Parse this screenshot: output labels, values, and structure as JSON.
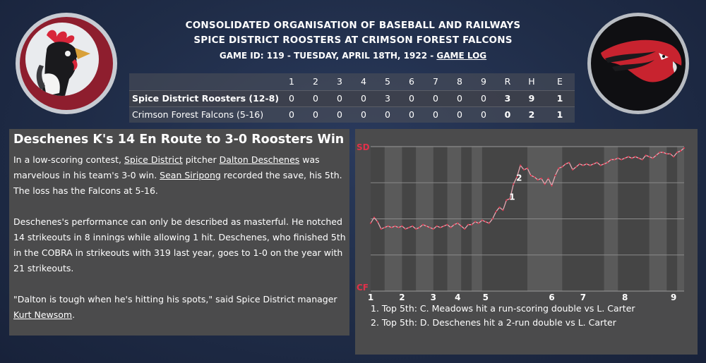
{
  "header": {
    "league": "CONSOLIDATED ORGANISATION OF BASEBALL AND RAILWAYS",
    "matchup": "SPICE DISTRICT ROOSTERS AT CRIMSON FOREST FALCONS",
    "game_info": "GAME ID: 119 - TUESDAY, APRIL 18TH, 1922 - ",
    "game_log_link": "GAME LOG"
  },
  "logos": {
    "home": "rooster-logo",
    "away": "falcon-logo"
  },
  "linescore": {
    "columns": [
      "1",
      "2",
      "3",
      "4",
      "5",
      "6",
      "7",
      "8",
      "9",
      "R",
      "H",
      "E"
    ],
    "rows": [
      {
        "team": "Spice District Roosters (12-8)",
        "scores": [
          "0",
          "0",
          "0",
          "0",
          "3",
          "0",
          "0",
          "0",
          "0",
          "3",
          "9",
          "1"
        ]
      },
      {
        "team": "Crimson Forest Falcons (5-16)",
        "scores": [
          "0",
          "0",
          "0",
          "0",
          "0",
          "0",
          "0",
          "0",
          "0",
          "0",
          "2",
          "1"
        ]
      }
    ]
  },
  "article": {
    "title": "Deschenes K's 14 En Route to 3-0 Roosters Win",
    "p1_a": "In a low-scoring contest, ",
    "p1_link1": "Spice District",
    "p1_b": " pitcher ",
    "p1_link2": "Dalton Deschenes",
    "p1_c": " was marvelous in his team's 3-0 win. ",
    "p1_link3": "Sean Siripong",
    "p1_d": " recorded the save, his 5th. The loss has the Falcons at 5-16.",
    "p2": "Deschenes's performance can only be described as masterful. He notched 14 strikeouts in 8 innings while allowing 1 hit. Deschenes, who finished 5th in the COBRA in strikeouts with 319 last year, goes to 1-0 on the year with 21 strikeouts.",
    "p3_a": "\"Dalton is tough when he's hitting his spots,\" said Spice District manager ",
    "p3_link": "Kurt Newsom",
    "p3_b": "."
  },
  "win_probability": {
    "top_label": "SD",
    "bottom_label": "CF",
    "accent_color": "#e0314a",
    "inning_labels": [
      "1",
      "2",
      "3",
      "4",
      "5",
      "6",
      "7",
      "8",
      "9"
    ],
    "markers": [
      "1",
      "2"
    ],
    "notes": [
      "1. Top 5th: C. Meadows hit a run-scoring double vs L. Carter",
      "2. Top 5th: D. Deschenes hit a 2-run double vs L. Carter"
    ],
    "chart_data": {
      "type": "line",
      "title": "",
      "ylim": [
        0,
        1
      ],
      "x": [
        0,
        1,
        2,
        3,
        4,
        5,
        6,
        7,
        8,
        9,
        10,
        11,
        12,
        13,
        14,
        15,
        16,
        17,
        18,
        19,
        20,
        21,
        22,
        23,
        24,
        25,
        26,
        27,
        28,
        29,
        30,
        31,
        32,
        33,
        34,
        35,
        36,
        37,
        38,
        39,
        40,
        41,
        42,
        43,
        44,
        45,
        46,
        47,
        48,
        49,
        50,
        51,
        52,
        53,
        54,
        55,
        56,
        57,
        58,
        59,
        60,
        61,
        62,
        63,
        64,
        65,
        66,
        67,
        68,
        69,
        70,
        71,
        72,
        73,
        74,
        75,
        76,
        77,
        78,
        79,
        80,
        81,
        82,
        83,
        84,
        85,
        86,
        87,
        88,
        89,
        90
      ],
      "values": [
        0.47,
        0.51,
        0.48,
        0.43,
        0.44,
        0.45,
        0.44,
        0.45,
        0.44,
        0.45,
        0.43,
        0.44,
        0.45,
        0.43,
        0.44,
        0.46,
        0.45,
        0.44,
        0.43,
        0.45,
        0.44,
        0.45,
        0.46,
        0.44,
        0.46,
        0.47,
        0.45,
        0.43,
        0.46,
        0.46,
        0.48,
        0.47,
        0.49,
        0.48,
        0.47,
        0.5,
        0.55,
        0.58,
        0.56,
        0.63,
        0.64,
        0.74,
        0.79,
        0.87,
        0.84,
        0.85,
        0.8,
        0.79,
        0.77,
        0.78,
        0.74,
        0.78,
        0.73,
        0.8,
        0.85,
        0.86,
        0.88,
        0.89,
        0.84,
        0.86,
        0.88,
        0.87,
        0.88,
        0.87,
        0.88,
        0.89,
        0.87,
        0.88,
        0.89,
        0.91,
        0.91,
        0.92,
        0.91,
        0.92,
        0.93,
        0.92,
        0.93,
        0.92,
        0.91,
        0.94,
        0.93,
        0.92,
        0.94,
        0.96,
        0.96,
        0.95,
        0.95,
        0.93,
        0.96,
        0.97,
        0.99
      ]
    }
  }
}
